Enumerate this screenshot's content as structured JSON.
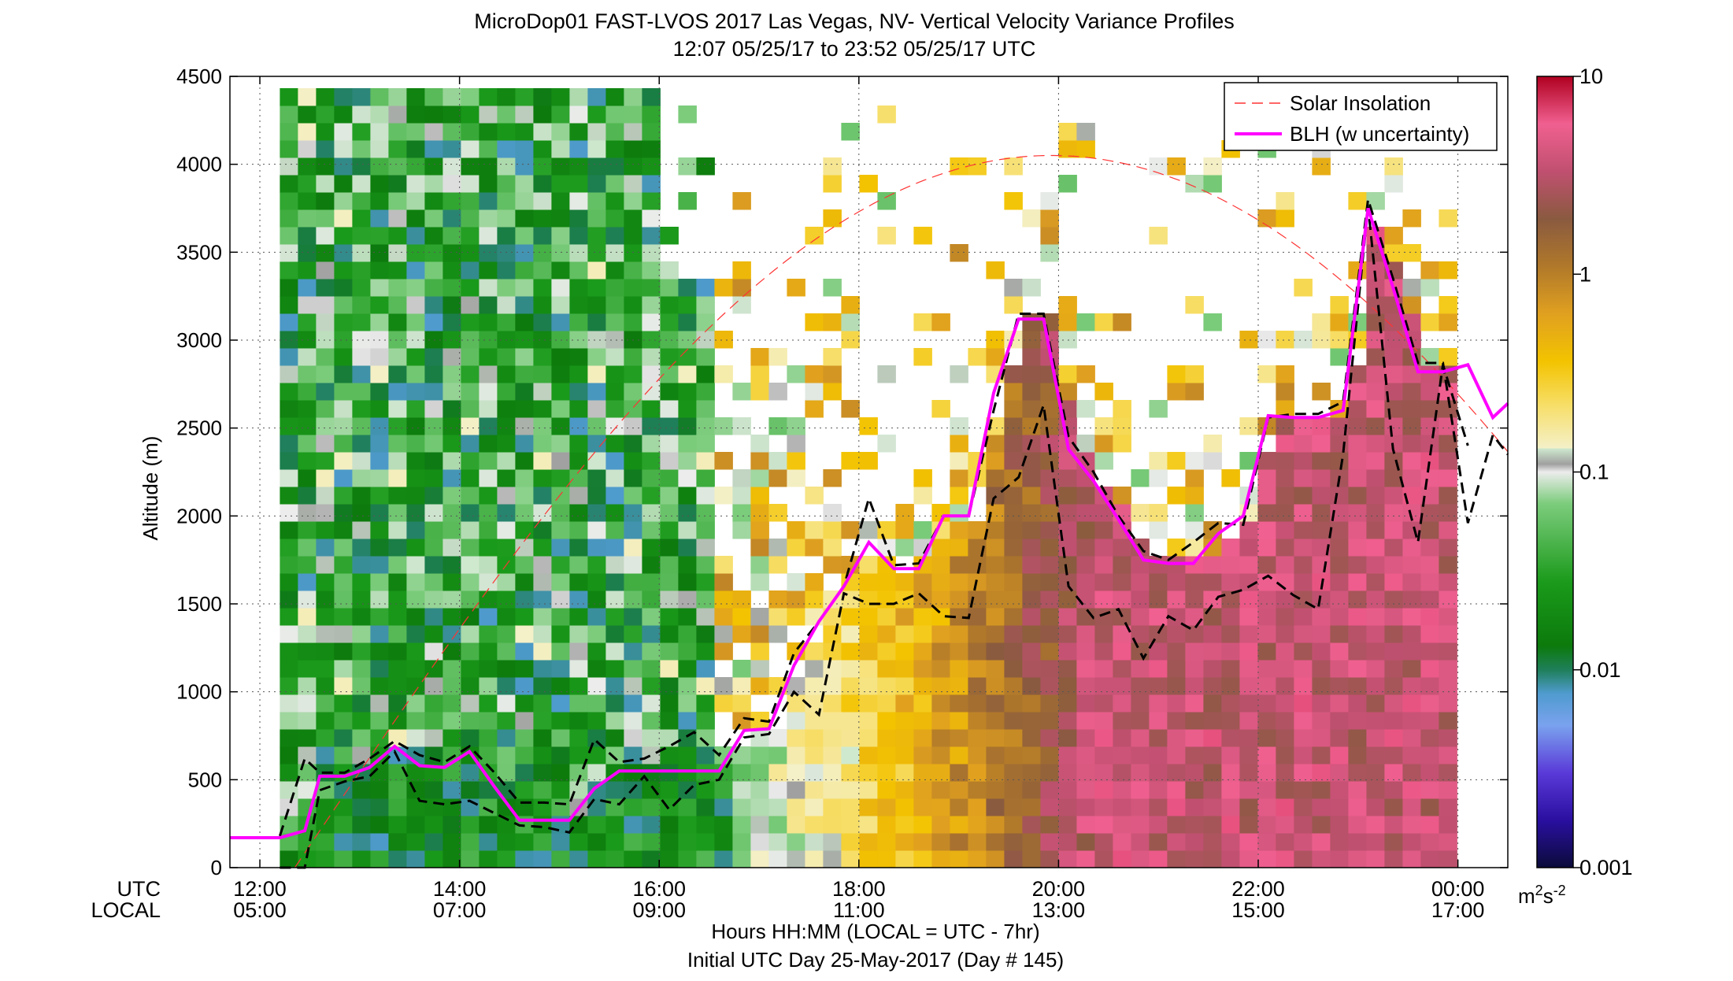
{
  "chart_data": {
    "type": "heatmap",
    "title": "MicroDop01 FAST-LVOS 2017 Las Vegas, NV- Vertical Velocity Variance Profiles",
    "subtitle": "12:07 05/25/17 to 23:52 05/25/17  UTC",
    "xlabel": "Hours HH:MM  (LOCAL = UTC - 7hr)",
    "xlabel2": "Initial UTC Day 25-May-2017 (Day # 145)",
    "ylabel": "Altitude (m)",
    "xlim": [
      11.7,
      24.5
    ],
    "ylim": [
      0,
      4500
    ],
    "y_ticks": [
      0,
      500,
      1000,
      1500,
      2000,
      2500,
      3000,
      3500,
      4000,
      4500
    ],
    "x_ticks": [
      {
        "utc": "12:00",
        "local": "05:00",
        "hour": 12
      },
      {
        "utc": "14:00",
        "local": "07:00",
        "hour": 14
      },
      {
        "utc": "16:00",
        "local": "09:00",
        "hour": 16
      },
      {
        "utc": "18:00",
        "local": "11:00",
        "hour": 18
      },
      {
        "utc": "20:00",
        "local": "13:00",
        "hour": 20
      },
      {
        "utc": "22:00",
        "local": "15:00",
        "hour": 22
      },
      {
        "utc": "00:00",
        "local": "17:00",
        "hour": 24
      }
    ],
    "axis_row_labels": {
      "utc": "UTC",
      "local": "LOCAL"
    },
    "grid": true,
    "legend": {
      "position": "top-right",
      "entries": [
        {
          "label": "Solar Insolation",
          "color": "#ff3333",
          "style": "dashed"
        },
        {
          "label": "BLH (w uncertainty)",
          "color": "#ff00ff",
          "style": "solid"
        }
      ]
    },
    "colorbar": {
      "scale": "log",
      "range": [
        0.001,
        10
      ],
      "ticks": [
        {
          "label": "10",
          "value": 10
        },
        {
          "label": "1",
          "value": 1
        },
        {
          "label": "0.1",
          "value": 0.1
        },
        {
          "label": "0.01",
          "value": 0.01
        },
        {
          "label": "0.001",
          "value": 0.001
        }
      ],
      "unit_base": "m",
      "unit_sup1": "2",
      "unit_mid": "s",
      "unit_sup2": "-2",
      "stops": [
        {
          "v": 0.0,
          "c": "#0b0b3b"
        },
        {
          "v": 0.06,
          "c": "#2a0fa0"
        },
        {
          "v": 0.12,
          "c": "#5a3ad8"
        },
        {
          "v": 0.18,
          "c": "#7aa2ee"
        },
        {
          "v": 0.22,
          "c": "#4f9bcf"
        },
        {
          "v": 0.25,
          "c": "#1f7f5a"
        },
        {
          "v": 0.28,
          "c": "#0c7a0c"
        },
        {
          "v": 0.36,
          "c": "#1a9a1a"
        },
        {
          "v": 0.46,
          "c": "#7ccc7c"
        },
        {
          "v": 0.53,
          "c": "#cfe9cf"
        },
        {
          "v": 0.5,
          "c": "#ececec"
        },
        {
          "v": 0.51,
          "c": "#a0a0a0"
        },
        {
          "v": 0.53,
          "c": "#f4f0c8"
        },
        {
          "v": 0.58,
          "c": "#f7e070"
        },
        {
          "v": 0.64,
          "c": "#f3c300"
        },
        {
          "v": 0.7,
          "c": "#e0a020"
        },
        {
          "v": 0.76,
          "c": "#b0782a"
        },
        {
          "v": 0.82,
          "c": "#8a5a40"
        },
        {
          "v": 0.88,
          "c": "#c05070"
        },
        {
          "v": 0.94,
          "c": "#f06090"
        },
        {
          "v": 1.0,
          "c": "#b00020"
        }
      ]
    },
    "blh": {
      "name": "BLH (w uncertainty)",
      "x": [
        11.7,
        12.2,
        12.45,
        12.6,
        12.85,
        13.1,
        13.35,
        13.6,
        13.85,
        14.1,
        14.35,
        14.6,
        14.85,
        15.1,
        15.35,
        15.6,
        15.85,
        16.1,
        16.35,
        16.6,
        16.85,
        17.1,
        17.35,
        17.6,
        17.85,
        18.1,
        18.35,
        18.6,
        18.85,
        19.1,
        19.35,
        19.6,
        19.85,
        20.1,
        20.35,
        20.6,
        20.85,
        21.1,
        21.35,
        21.6,
        21.85,
        22.1,
        22.35,
        22.6,
        22.85,
        23.1,
        23.35,
        23.6,
        23.85,
        24.1,
        24.35,
        24.5
      ],
      "y": [
        170,
        170,
        210,
        520,
        520,
        570,
        690,
        580,
        570,
        660,
        460,
        270,
        270,
        270,
        450,
        550,
        550,
        550,
        550,
        550,
        780,
        790,
        1150,
        1400,
        1600,
        1850,
        1700,
        1700,
        2000,
        2000,
        2700,
        3120,
        3120,
        2380,
        2200,
        1980,
        1750,
        1730,
        1730,
        1900,
        2000,
        2570,
        2560,
        2560,
        2600,
        3750,
        3300,
        2820,
        2820,
        2860,
        2560,
        2640
      ]
    },
    "blh_upper": {
      "x": [
        12.2,
        12.45,
        12.6,
        12.85,
        13.1,
        13.35,
        13.6,
        13.85,
        14.1,
        14.35,
        14.6,
        14.85,
        15.1,
        15.35,
        15.6,
        15.85,
        16.1,
        16.35,
        16.6,
        16.85,
        17.1,
        17.35,
        17.6,
        17.85,
        18.1,
        18.35,
        18.6,
        18.85,
        19.1,
        19.35,
        19.6,
        19.85,
        20.1,
        20.35,
        20.6,
        20.85,
        21.1,
        21.35,
        21.6,
        21.85,
        22.1,
        22.35,
        22.6,
        22.85,
        23.1,
        23.35,
        23.6,
        23.85,
        24.1,
        24.35,
        24.5
      ],
      "y": [
        180,
        620,
        540,
        540,
        620,
        720,
        640,
        600,
        690,
        540,
        370,
        370,
        360,
        730,
        600,
        620,
        690,
        770,
        640,
        850,
        830,
        1220,
        1400,
        1600,
        2100,
        1720,
        1730,
        2000,
        2000,
        2600,
        3150,
        3150,
        2450,
        2250,
        2000,
        1800,
        1750,
        1850,
        1960,
        1950,
        2560,
        2580,
        2580,
        2650,
        3800,
        3350,
        2870,
        2870,
        1960,
        2460,
        2350
      ]
    },
    "blh_lower": {
      "x": [
        12.2,
        12.45,
        12.6,
        12.85,
        13.1,
        13.35,
        13.6,
        13.85,
        14.1,
        14.35,
        14.6,
        14.85,
        15.1,
        15.35,
        15.6,
        15.85,
        16.1,
        16.35,
        16.6,
        16.85,
        17.1,
        17.35,
        17.6,
        17.85,
        18.1,
        18.35,
        18.6,
        18.85,
        19.1,
        19.35,
        19.6,
        19.85,
        20.1,
        20.35,
        20.6,
        20.85,
        21.1,
        21.35,
        21.6,
        21.85,
        22.1,
        22.35,
        22.6,
        22.85,
        23.1,
        23.35,
        23.6,
        23.85,
        24.1
      ],
      "y": [
        0,
        0,
        440,
        490,
        520,
        660,
        380,
        360,
        380,
        310,
        240,
        230,
        200,
        390,
        360,
        520,
        330,
        470,
        500,
        740,
        760,
        1000,
        870,
        1560,
        1500,
        1500,
        1560,
        1430,
        1420,
        2100,
        2220,
        2630,
        1600,
        1420,
        1470,
        1190,
        1430,
        1350,
        1540,
        1580,
        1660,
        1550,
        1470,
        2350,
        3760,
        2380,
        1850,
        2860,
        2400
      ]
    },
    "solar_insolation": {
      "name": "Solar Insolation",
      "x_peak": 19.93,
      "y_peak": 4050,
      "x_zero": 12.35,
      "x_range": [
        12.35,
        24.5
      ]
    }
  }
}
